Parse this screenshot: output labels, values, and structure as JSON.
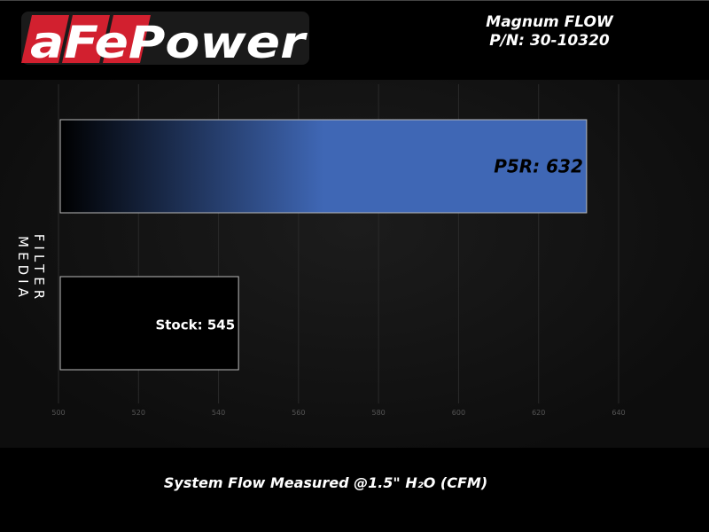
{
  "header": {
    "brand": "aFePower",
    "title": "Magnum FLOW",
    "part_number": "P/N: 30-10320"
  },
  "chart_data": {
    "type": "bar",
    "orientation": "horizontal",
    "categories": [
      "P5R",
      "Stock"
    ],
    "values": [
      632,
      545
    ],
    "data_labels": [
      "P5R: 632",
      "Stock: 545"
    ],
    "xlabel": "System Flow Measured @1.5\" H₂O (CFM)",
    "ylabel": "FILTER MEDIA",
    "xlim": [
      500,
      650
    ],
    "xticks": [
      500,
      520,
      540,
      560,
      580,
      600,
      620,
      640
    ],
    "grid": true,
    "colors": {
      "P5R": "#3f67b5",
      "Stock": "#000000",
      "gradient_start": "#000000"
    }
  }
}
